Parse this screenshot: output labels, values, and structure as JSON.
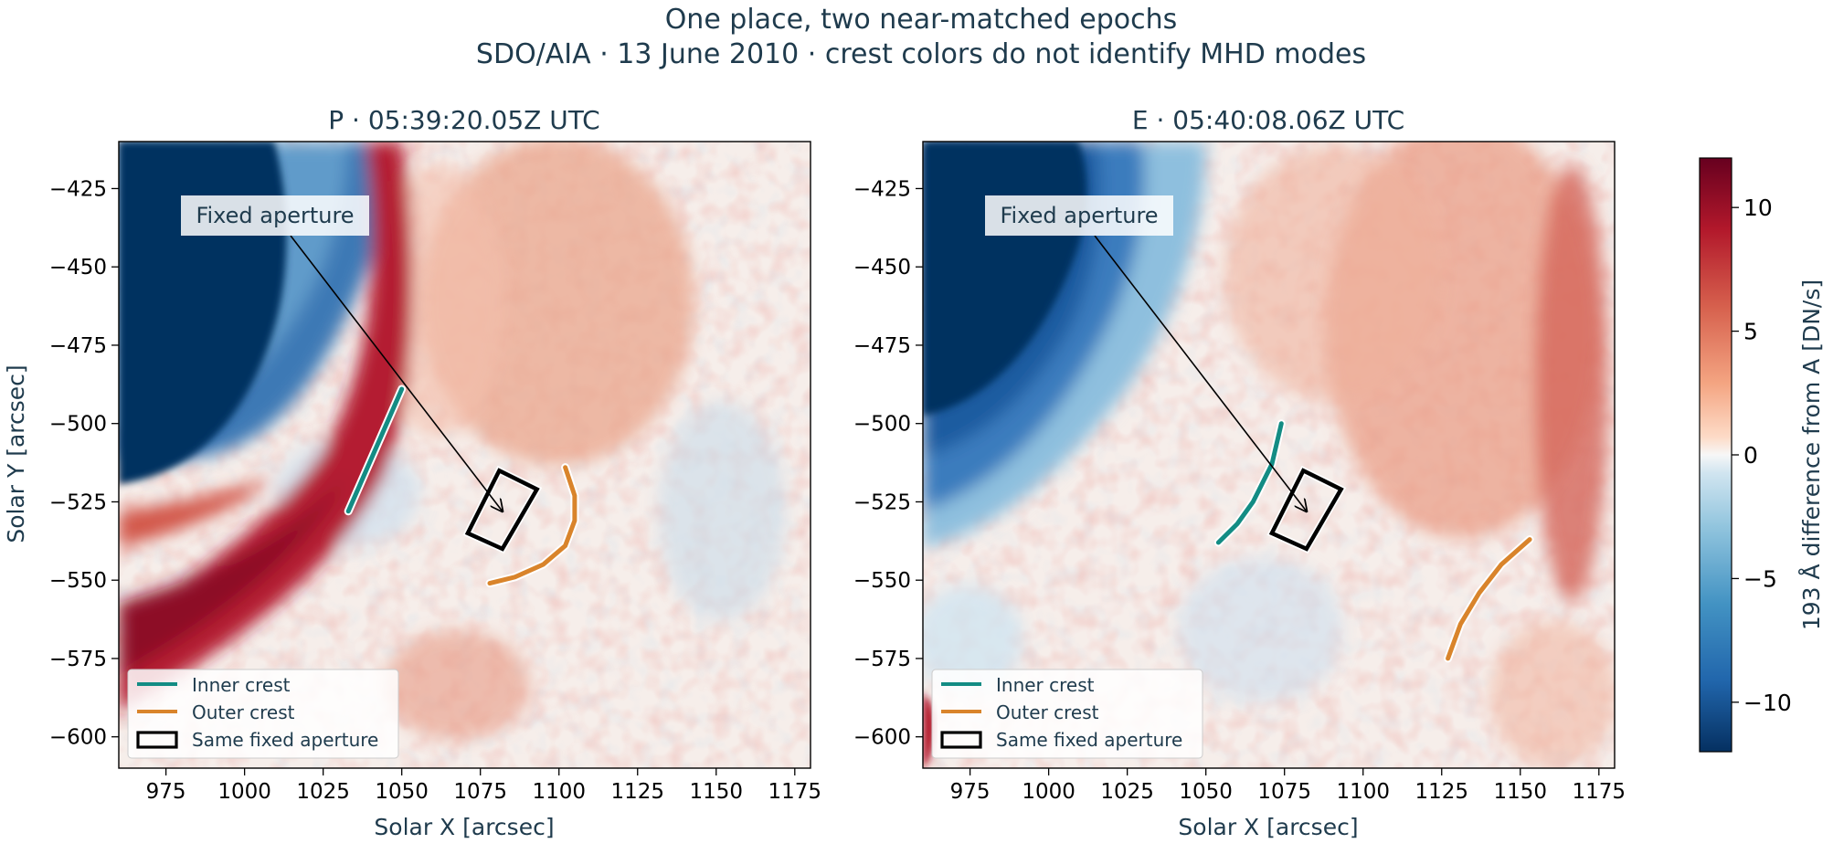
{
  "figure": {
    "title_line1": "One place, two near-matched epochs",
    "title_line2": "SDO/AIA · 13 June 2010 · crest colors do not identify MHD modes"
  },
  "colors": {
    "title": "#1f3b4d",
    "inner_crest": "#138c84",
    "outer_crest": "#d9842b",
    "aperture": "#000000",
    "cmap_neg": "#053061",
    "cmap_mid": "#f7f7f7",
    "cmap_pos": "#67001f"
  },
  "chart_data": [
    {
      "type": "heatmap",
      "panel": "P",
      "title": "P · 05:39:20.05Z UTC",
      "xlabel": "Solar X [arcsec]",
      "ylabel": "Solar Y [arcsec]",
      "xlim": [
        960,
        1180
      ],
      "ylim": [
        -610,
        -410
      ],
      "xticks": [
        975,
        1000,
        1025,
        1050,
        1075,
        1100,
        1125,
        1150,
        1175
      ],
      "yticks": [
        -425,
        -450,
        -475,
        -500,
        -525,
        -550,
        -575,
        -600
      ],
      "annotation": {
        "text": "Fixed aperture",
        "xy": [
          1082,
          -528
        ]
      },
      "aperture": [
        [
          1071,
          -535
        ],
        [
          1081,
          -515
        ],
        [
          1093,
          -521
        ],
        [
          1082,
          -540
        ]
      ],
      "inner_crest": [
        [
          1050,
          -489
        ],
        [
          1033,
          -528
        ]
      ],
      "outer_crest": [
        [
          1102,
          -514
        ],
        [
          1105,
          -523
        ],
        [
          1105,
          -531
        ],
        [
          1102,
          -539
        ],
        [
          1095,
          -545
        ],
        [
          1086,
          -549
        ],
        [
          1078,
          -551
        ]
      ],
      "legend": {
        "location": "lower-left",
        "entries": [
          "Inner crest",
          "Outer crest",
          "Same fixed aperture"
        ]
      }
    },
    {
      "type": "heatmap",
      "panel": "E",
      "title": "E · 05:40:08.06Z UTC",
      "xlabel": "Solar X [arcsec]",
      "ylabel": "",
      "xlim": [
        960,
        1180
      ],
      "ylim": [
        -610,
        -410
      ],
      "xticks": [
        975,
        1000,
        1025,
        1050,
        1075,
        1100,
        1125,
        1150,
        1175
      ],
      "yticks": [
        -425,
        -450,
        -475,
        -500,
        -525,
        -550,
        -575,
        -600
      ],
      "annotation": {
        "text": "Fixed aperture",
        "xy": [
          1082,
          -528
        ]
      },
      "aperture": [
        [
          1071,
          -535
        ],
        [
          1081,
          -515
        ],
        [
          1093,
          -521
        ],
        [
          1082,
          -540
        ]
      ],
      "inner_crest": [
        [
          1074,
          -500
        ],
        [
          1071,
          -513
        ],
        [
          1065,
          -525
        ],
        [
          1060,
          -532
        ],
        [
          1054,
          -538
        ]
      ],
      "outer_crest": [
        [
          1153,
          -537
        ],
        [
          1144,
          -545
        ],
        [
          1137,
          -554
        ],
        [
          1131,
          -564
        ],
        [
          1127,
          -575
        ]
      ],
      "legend": {
        "location": "lower-left",
        "entries": [
          "Inner crest",
          "Outer crest",
          "Same fixed aperture"
        ]
      }
    }
  ],
  "colorbar": {
    "label": "193 Å difference from A [DN/s]",
    "range": [
      -12,
      12
    ],
    "ticks": [
      10,
      5,
      0,
      -5,
      -10
    ],
    "tick_labels": [
      "10",
      "5",
      "0",
      "−5",
      "−10"
    ]
  }
}
